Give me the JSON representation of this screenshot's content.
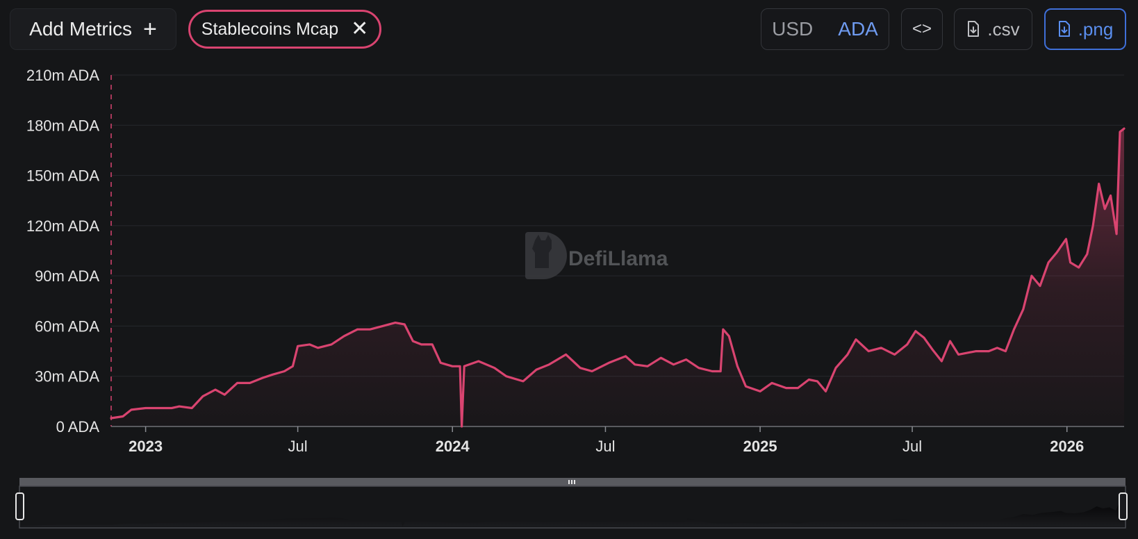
{
  "toolbar": {
    "add_metrics_label": "Add Metrics",
    "add_metrics_icon": "+",
    "metric_chip_label": "Stablecoins Mcap",
    "metric_chip_close_icon": "✕",
    "currency_usd": "USD",
    "currency_ada": "ADA",
    "selected_currency": "ADA",
    "embed_icon": "<>",
    "csv_label": ".csv",
    "png_label": ".png"
  },
  "watermark": "DefiLlama",
  "colors": {
    "series": "#d94470",
    "accent_blue": "#5b8ff0",
    "background": "#151618"
  },
  "chart_data": {
    "type": "area",
    "title": "",
    "xlabel": "",
    "ylabel": "",
    "ylim": [
      0,
      210
    ],
    "y_unit": "m ADA",
    "yticks": [
      "0 ADA",
      "30m ADA",
      "60m ADA",
      "90m ADA",
      "120m ADA",
      "150m ADA",
      "180m ADA",
      "210m ADA"
    ],
    "ytick_values": [
      0,
      30,
      60,
      90,
      120,
      150,
      180,
      210
    ],
    "xticks": [
      {
        "label": "2023",
        "date": "2023-01-01",
        "bold": true
      },
      {
        "label": "Jul",
        "date": "2023-07-01",
        "bold": false
      },
      {
        "label": "2024",
        "date": "2024-01-01",
        "bold": true
      },
      {
        "label": "Jul",
        "date": "2024-07-01",
        "bold": false
      },
      {
        "label": "2025",
        "date": "2025-01-01",
        "bold": true
      },
      {
        "label": "Jul",
        "date": "2025-07-01",
        "bold": false
      },
      {
        "label": "2026",
        "date": "2026-01-01",
        "bold": true
      }
    ],
    "xlim": [
      "2022-11-21",
      "2026-03-10"
    ],
    "grid": true,
    "series": [
      {
        "name": "Stablecoins Mcap",
        "color": "#d94470",
        "points": [
          [
            "2022-11-21",
            5
          ],
          [
            "2022-12-05",
            6
          ],
          [
            "2022-12-15",
            10
          ],
          [
            "2023-01-01",
            11
          ],
          [
            "2023-01-20",
            11
          ],
          [
            "2023-02-01",
            11
          ],
          [
            "2023-02-10",
            12
          ],
          [
            "2023-02-25",
            11
          ],
          [
            "2023-03-10",
            18
          ],
          [
            "2023-03-25",
            22
          ],
          [
            "2023-04-05",
            19
          ],
          [
            "2023-04-20",
            26
          ],
          [
            "2023-05-05",
            26
          ],
          [
            "2023-05-20",
            29
          ],
          [
            "2023-06-01",
            31
          ],
          [
            "2023-06-15",
            33
          ],
          [
            "2023-06-25",
            36
          ],
          [
            "2023-07-01",
            48
          ],
          [
            "2023-07-15",
            49
          ],
          [
            "2023-07-25",
            47
          ],
          [
            "2023-08-10",
            49
          ],
          [
            "2023-08-25",
            54
          ],
          [
            "2023-09-10",
            58
          ],
          [
            "2023-09-25",
            58
          ],
          [
            "2023-10-10",
            60
          ],
          [
            "2023-10-25",
            62
          ],
          [
            "2023-11-05",
            61
          ],
          [
            "2023-11-15",
            51
          ],
          [
            "2023-11-25",
            49
          ],
          [
            "2023-12-08",
            49
          ],
          [
            "2023-12-18",
            38
          ],
          [
            "2024-01-01",
            36
          ],
          [
            "2024-01-10",
            36
          ],
          [
            "2024-01-12",
            0
          ],
          [
            "2024-01-15",
            36
          ],
          [
            "2024-02-01",
            39
          ],
          [
            "2024-02-20",
            35
          ],
          [
            "2024-03-05",
            30
          ],
          [
            "2024-03-25",
            27
          ],
          [
            "2024-04-10",
            34
          ],
          [
            "2024-04-25",
            37
          ],
          [
            "2024-05-15",
            43
          ],
          [
            "2024-06-01",
            35
          ],
          [
            "2024-06-15",
            33
          ],
          [
            "2024-07-05",
            38
          ],
          [
            "2024-07-25",
            42
          ],
          [
            "2024-08-05",
            37
          ],
          [
            "2024-08-20",
            36
          ],
          [
            "2024-09-05",
            41
          ],
          [
            "2024-09-20",
            37
          ],
          [
            "2024-10-05",
            40
          ],
          [
            "2024-10-20",
            35
          ],
          [
            "2024-11-05",
            33
          ],
          [
            "2024-11-15",
            33
          ],
          [
            "2024-11-18",
            58
          ],
          [
            "2024-11-25",
            54
          ],
          [
            "2024-12-05",
            36
          ],
          [
            "2024-12-15",
            24
          ],
          [
            "2025-01-01",
            21
          ],
          [
            "2025-01-15",
            26
          ],
          [
            "2025-02-01",
            23
          ],
          [
            "2025-02-15",
            23
          ],
          [
            "2025-02-28",
            28
          ],
          [
            "2025-03-10",
            27
          ],
          [
            "2025-03-20",
            21
          ],
          [
            "2025-04-01",
            35
          ],
          [
            "2025-04-15",
            43
          ],
          [
            "2025-04-25",
            52
          ],
          [
            "2025-05-10",
            45
          ],
          [
            "2025-05-25",
            47
          ],
          [
            "2025-06-10",
            43
          ],
          [
            "2025-06-25",
            49
          ],
          [
            "2025-07-05",
            57
          ],
          [
            "2025-07-15",
            53
          ],
          [
            "2025-07-25",
            46
          ],
          [
            "2025-08-05",
            39
          ],
          [
            "2025-08-15",
            51
          ],
          [
            "2025-08-25",
            43
          ],
          [
            "2025-09-15",
            45
          ],
          [
            "2025-09-30",
            45
          ],
          [
            "2025-10-10",
            47
          ],
          [
            "2025-10-20",
            45
          ],
          [
            "2025-10-30",
            58
          ],
          [
            "2025-11-10",
            70
          ],
          [
            "2025-11-20",
            90
          ],
          [
            "2025-11-30",
            84
          ],
          [
            "2025-12-10",
            98
          ],
          [
            "2025-12-20",
            104
          ],
          [
            "2025-12-31",
            112
          ],
          [
            "2026-01-05",
            98
          ],
          [
            "2026-01-15",
            95
          ],
          [
            "2026-01-25",
            103
          ],
          [
            "2026-02-01",
            120
          ],
          [
            "2026-02-08",
            145
          ],
          [
            "2026-02-15",
            130
          ],
          [
            "2026-02-22",
            138
          ],
          [
            "2026-03-01",
            115
          ],
          [
            "2026-03-05",
            176
          ],
          [
            "2026-03-10",
            178
          ]
        ]
      }
    ]
  }
}
